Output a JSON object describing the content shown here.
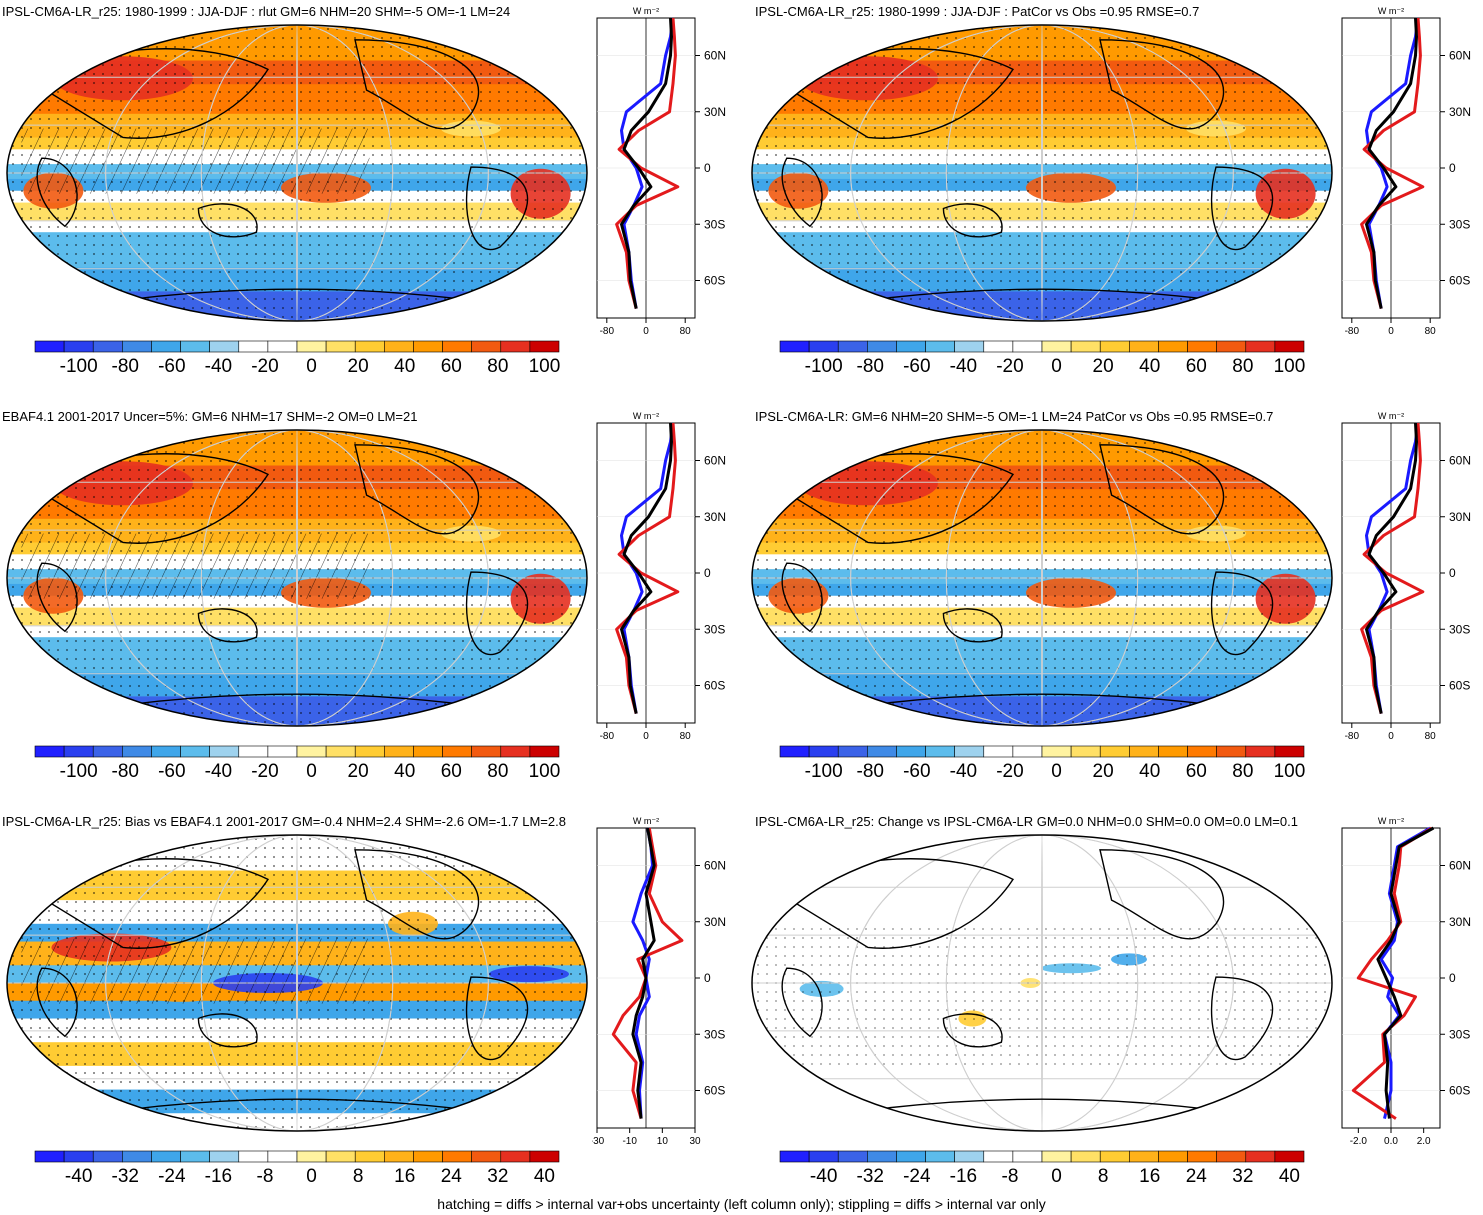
{
  "panels": [
    {
      "title": "IPSL-CM6A-LR_r25: 1980-1999 : JJA-DJF : rlut GM=6 NHM=20 SHM=-5 OM=-1 LM=24",
      "colorbar_labels": [
        "-100",
        "-80",
        "-60",
        "-40",
        "-20",
        "0",
        "20",
        "40",
        "60",
        "80",
        "100"
      ],
      "profile_unit": "W m⁻²",
      "profile_xticks": [
        "-80",
        "0",
        "80"
      ],
      "lat_ticks": [
        "60N",
        "30N",
        "0",
        "30S",
        "60S"
      ],
      "hatched": true
    },
    {
      "title": "IPSL-CM6A-LR_r25: 1980-1999 : JJA-DJF : PatCor vs Obs =0.95 RMSE=0.7",
      "colorbar_labels": [
        "-100",
        "-80",
        "-60",
        "-40",
        "-20",
        "0",
        "20",
        "40",
        "60",
        "80",
        "100"
      ],
      "profile_unit": "W m⁻²",
      "profile_xticks": [
        "-80",
        "0",
        "80"
      ],
      "lat_ticks": [
        "60N",
        "30N",
        "0",
        "30S",
        "60S"
      ],
      "hatched": false
    },
    {
      "title": "EBAF4.1 2001-2017 Uncer=5%: GM=6 NHM=17 SHM=-2 OM=0 LM=21",
      "colorbar_labels": [
        "-100",
        "-80",
        "-60",
        "-40",
        "-20",
        "0",
        "20",
        "40",
        "60",
        "80",
        "100"
      ],
      "profile_unit": "W m⁻²",
      "profile_xticks": [
        "-80",
        "0",
        "80"
      ],
      "lat_ticks": [
        "60N",
        "30N",
        "0",
        "30S",
        "60S"
      ],
      "hatched": true
    },
    {
      "title": "IPSL-CM6A-LR: GM=6 NHM=20 SHM=-5 OM=-1 LM=24 PatCor vs Obs =0.95 RMSE=0.7",
      "colorbar_labels": [
        "-100",
        "-80",
        "-60",
        "-40",
        "-20",
        "0",
        "20",
        "40",
        "60",
        "80",
        "100"
      ],
      "profile_unit": "W m⁻²",
      "profile_xticks": [
        "-80",
        "0",
        "80"
      ],
      "lat_ticks": [
        "60N",
        "30N",
        "0",
        "30S",
        "60S"
      ],
      "hatched": false
    },
    {
      "title": "IPSL-CM6A-LR_r25: Bias vs EBAF4.1 2001-2017 GM=-0.4 NHM=2.4 SHM=-2.6 OM=-1.7 LM=2.8",
      "colorbar_labels": [
        "-40",
        "-32",
        "-24",
        "-16",
        "-8",
        "0",
        "8",
        "16",
        "24",
        "32",
        "40"
      ],
      "profile_unit": "W m⁻²",
      "profile_xticks": [
        "-30",
        "-10",
        "10",
        "30"
      ],
      "lat_ticks": [
        "60N",
        "30N",
        "0",
        "30S",
        "60S"
      ],
      "hatched": true
    },
    {
      "title": "IPSL-CM6A-LR_r25: Change vs IPSL-CM6A-LR GM=0.0 NHM=0.0 SHM=0.0 OM=0.0 LM=0.1",
      "colorbar_labels": [
        "-40",
        "-32",
        "-24",
        "-16",
        "-8",
        "0",
        "8",
        "16",
        "24",
        "32",
        "40"
      ],
      "profile_unit": "W m⁻²",
      "profile_xticks": [
        "-2.0",
        "0.0",
        "2.0"
      ],
      "lat_ticks": [
        "60N",
        "30N",
        "0",
        "30S",
        "60S"
      ],
      "hatched": false
    }
  ],
  "colors": {
    "scale": [
      "#2020ff",
      "#2a3ff0",
      "#3b63e8",
      "#3f8ae6",
      "#3fa6ea",
      "#5cbcec",
      "#9ed2ee",
      "#ffffff",
      "#ffffff",
      "#fff3a0",
      "#ffe066",
      "#ffcc33",
      "#ffb21a",
      "#ff9a00",
      "#ff7a00",
      "#f25a10",
      "#e63020",
      "#cc0000"
    ],
    "profile_a": "#e31a1c",
    "profile_b": "#1a1aff",
    "profile_c": "#000000"
  },
  "footnote": "hatching = diffs > internal var+obs uncertainty (left column only); stippling = diffs > internal var only",
  "chart_data": [
    {
      "type": "heatmap",
      "title": "IPSL-CM6A-LR_r25: 1980-1999 : JJA-DJF : rlut GM=6 NHM=20 SHM=-5 OM=-1 LM=24",
      "colorbar": [
        -100,
        100
      ],
      "profile": {
        "lat": [
          80,
          70,
          60,
          45,
          30,
          20,
          10,
          0,
          -10,
          -20,
          -30,
          -45,
          -60,
          -75
        ],
        "red": [
          55,
          58,
          60,
          55,
          48,
          -15,
          -55,
          -10,
          65,
          -20,
          -60,
          -40,
          -35,
          -20
        ],
        "blue": [
          55,
          50,
          40,
          30,
          -40,
          -50,
          -45,
          -20,
          -8,
          -25,
          -45,
          -35,
          -30,
          -20
        ],
        "black": [
          50,
          52,
          50,
          40,
          5,
          -30,
          -45,
          -15,
          10,
          -25,
          -50,
          -35,
          -32,
          -20
        ]
      }
    },
    {
      "type": "heatmap",
      "title": "IPSL-CM6A-LR_r25: 1980-1999 : JJA-DJF : PatCor vs Obs =0.95 RMSE=0.7",
      "colorbar": [
        -100,
        100
      ],
      "profile": {
        "lat": [
          80,
          70,
          60,
          45,
          30,
          20,
          10,
          0,
          -10,
          -20,
          -30,
          -45,
          -60,
          -75
        ],
        "red": [
          55,
          58,
          60,
          55,
          48,
          -15,
          -55,
          -10,
          65,
          -20,
          -60,
          -40,
          -35,
          -20
        ],
        "blue": [
          55,
          50,
          40,
          30,
          -40,
          -50,
          -45,
          -20,
          -8,
          -25,
          -45,
          -35,
          -30,
          -20
        ],
        "black": [
          50,
          52,
          50,
          40,
          5,
          -30,
          -45,
          -15,
          10,
          -25,
          -50,
          -35,
          -32,
          -20
        ]
      }
    },
    {
      "type": "heatmap",
      "title": "EBAF4.1 2001-2017 Uncer=5%: GM=6 NHM=17 SHM=-2 OM=0 LM=21",
      "colorbar": [
        -100,
        100
      ],
      "profile": {
        "lat": [
          80,
          70,
          60,
          45,
          30,
          20,
          10,
          0,
          -10,
          -20,
          -30,
          -45,
          -60,
          -75
        ],
        "red": [
          55,
          58,
          60,
          55,
          48,
          -15,
          -55,
          -10,
          65,
          -20,
          -60,
          -40,
          -35,
          -20
        ],
        "blue": [
          55,
          50,
          40,
          30,
          -40,
          -50,
          -45,
          -20,
          -8,
          -25,
          -45,
          -35,
          -30,
          -20
        ],
        "black": [
          50,
          52,
          50,
          40,
          5,
          -30,
          -45,
          -15,
          10,
          -25,
          -50,
          -35,
          -32,
          -20
        ]
      }
    },
    {
      "type": "heatmap",
      "title": "IPSL-CM6A-LR: GM=6 NHM=20 SHM=-5 OM=-1 LM=24 PatCor vs Obs =0.95 RMSE=0.7",
      "colorbar": [
        -100,
        100
      ],
      "profile": {
        "lat": [
          80,
          70,
          60,
          45,
          30,
          20,
          10,
          0,
          -10,
          -20,
          -30,
          -45,
          -60,
          -75
        ],
        "red": [
          55,
          58,
          60,
          55,
          48,
          -15,
          -55,
          -10,
          65,
          -20,
          -60,
          -40,
          -35,
          -20
        ],
        "blue": [
          55,
          50,
          40,
          30,
          -40,
          -50,
          -45,
          -20,
          -8,
          -25,
          -45,
          -35,
          -30,
          -20
        ],
        "black": [
          50,
          52,
          50,
          40,
          5,
          -30,
          -45,
          -15,
          10,
          -25,
          -50,
          -35,
          -32,
          -20
        ]
      }
    },
    {
      "type": "heatmap",
      "title": "IPSL-CM6A-LR_r25: Bias vs EBAF4.1 2001-2017 GM=-0.4 NHM=2.4 SHM=-2.6 OM=-1.7 LM=2.8",
      "colorbar": [
        -40,
        40
      ],
      "profile": {
        "lat": [
          80,
          70,
          60,
          45,
          30,
          20,
          10,
          0,
          -10,
          -20,
          -30,
          -45,
          -60,
          -75
        ],
        "red": [
          2,
          4,
          6,
          2,
          10,
          22,
          -5,
          0,
          -4,
          -14,
          -20,
          -6,
          -8,
          -3
        ],
        "blue": [
          1,
          3,
          4,
          -3,
          -8,
          -2,
          2,
          0,
          2,
          -4,
          -6,
          -2,
          -4,
          -3
        ],
        "black": [
          1,
          3,
          5,
          0,
          3,
          5,
          -2,
          0,
          -2,
          -6,
          -8,
          -3,
          -5,
          -3
        ]
      }
    },
    {
      "type": "heatmap",
      "title": "IPSL-CM6A-LR_r25: Change vs IPSL-CM6A-LR GM=0.0 NHM=0.0 SHM=0.0 OM=0.0 LM=0.1",
      "colorbar": [
        -40,
        40
      ],
      "profile": {
        "lat": [
          80,
          70,
          60,
          45,
          30,
          20,
          10,
          0,
          -10,
          -20,
          -30,
          -45,
          -60,
          -75
        ],
        "red": [
          2.5,
          0.6,
          0.5,
          0.2,
          0.6,
          -0.2,
          -1.2,
          -2.0,
          1.5,
          0.8,
          -0.5,
          -0.4,
          -2.3,
          0.3
        ],
        "blue": [
          2.4,
          0.4,
          0.2,
          -0.1,
          0.4,
          0.2,
          -0.6,
          0.1,
          -0.2,
          0.5,
          -0.4,
          0.0,
          0.0,
          -0.4
        ],
        "black": [
          2.6,
          0.5,
          0.3,
          0.0,
          0.5,
          0.0,
          -0.8,
          -0.3,
          0.2,
          0.6,
          -0.4,
          -0.2,
          -0.3,
          -0.1
        ]
      }
    }
  ]
}
